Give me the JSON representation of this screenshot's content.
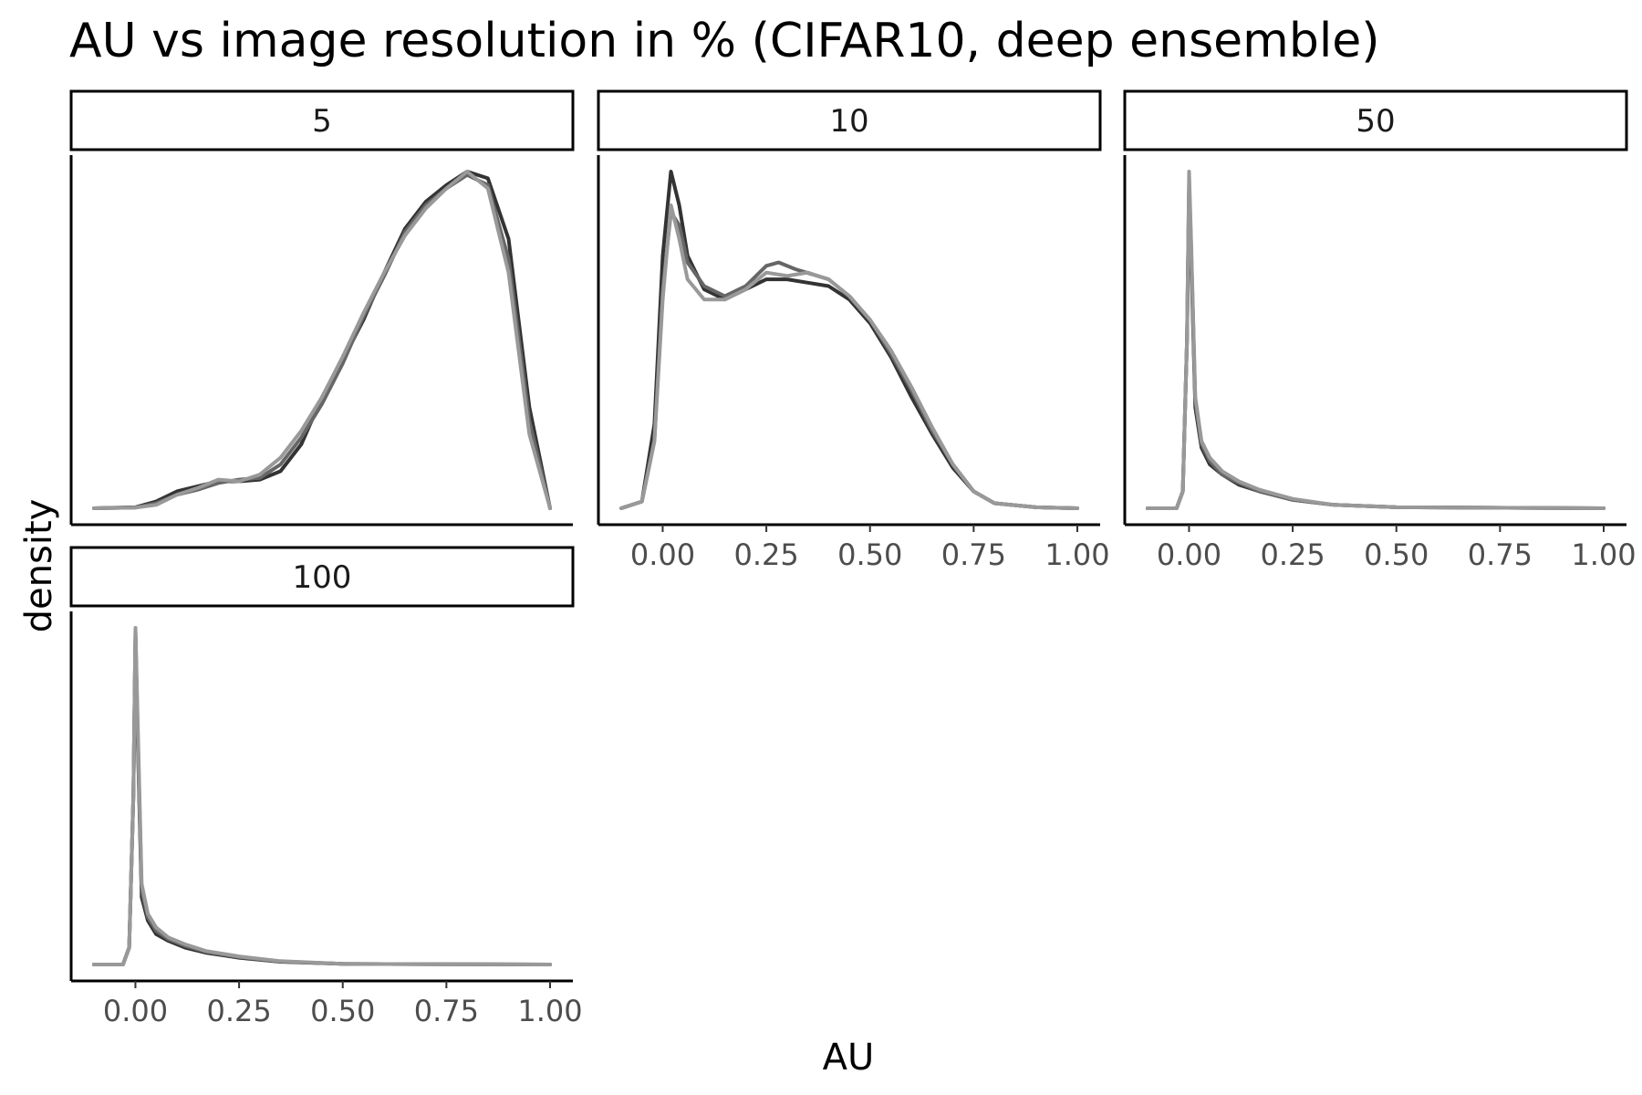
{
  "chart_data": {
    "type": "line",
    "title": "AU vs image resolution in % (CIFAR10, deep ensemble)",
    "xlabel": "AU",
    "ylabel": "density",
    "xlim": [
      -0.1,
      1.0
    ],
    "x_ticks": [
      0.0,
      0.25,
      0.5,
      0.75,
      1.0
    ],
    "x_tick_labels": [
      "0.00",
      "0.25",
      "0.50",
      "0.75",
      "1.00"
    ],
    "grid": false,
    "legend": "none",
    "series_colors": [
      "#333333",
      "#666666",
      "#999999"
    ],
    "panels": [
      {
        "label": "5",
        "series": [
          {
            "points": [
              [
                -0.1,
                0
              ],
              [
                0,
                0.003
              ],
              [
                0.05,
                0.02
              ],
              [
                0.1,
                0.05
              ],
              [
                0.15,
                0.065
              ],
              [
                0.2,
                0.08
              ],
              [
                0.25,
                0.08
              ],
              [
                0.3,
                0.085
              ],
              [
                0.35,
                0.11
              ],
              [
                0.4,
                0.19
              ],
              [
                0.45,
                0.33
              ],
              [
                0.5,
                0.44
              ],
              [
                0.55,
                0.56
              ],
              [
                0.6,
                0.7
              ],
              [
                0.65,
                0.83
              ],
              [
                0.7,
                0.91
              ],
              [
                0.75,
                0.96
              ],
              [
                0.8,
                1.0
              ],
              [
                0.85,
                0.98
              ],
              [
                0.9,
                0.8
              ],
              [
                0.95,
                0.3
              ],
              [
                1.0,
                0
              ]
            ]
          },
          {
            "points": [
              [
                -0.1,
                0
              ],
              [
                0,
                0.002
              ],
              [
                0.05,
                0.015
              ],
              [
                0.1,
                0.04
              ],
              [
                0.15,
                0.055
              ],
              [
                0.2,
                0.075
              ],
              [
                0.25,
                0.085
              ],
              [
                0.3,
                0.09
              ],
              [
                0.35,
                0.13
              ],
              [
                0.4,
                0.21
              ],
              [
                0.45,
                0.31
              ],
              [
                0.5,
                0.43
              ],
              [
                0.55,
                0.57
              ],
              [
                0.6,
                0.69
              ],
              [
                0.65,
                0.82
              ],
              [
                0.7,
                0.9
              ],
              [
                0.75,
                0.95
              ],
              [
                0.8,
                0.99
              ],
              [
                0.85,
                0.96
              ],
              [
                0.9,
                0.74
              ],
              [
                0.95,
                0.26
              ],
              [
                1.0,
                0
              ]
            ]
          },
          {
            "points": [
              [
                -0.1,
                0
              ],
              [
                0,
                0.002
              ],
              [
                0.05,
                0.01
              ],
              [
                0.1,
                0.04
              ],
              [
                0.15,
                0.06
              ],
              [
                0.2,
                0.085
              ],
              [
                0.25,
                0.08
              ],
              [
                0.3,
                0.1
              ],
              [
                0.35,
                0.15
              ],
              [
                0.4,
                0.23
              ],
              [
                0.45,
                0.33
              ],
              [
                0.5,
                0.45
              ],
              [
                0.55,
                0.58
              ],
              [
                0.6,
                0.7
              ],
              [
                0.65,
                0.81
              ],
              [
                0.7,
                0.89
              ],
              [
                0.75,
                0.95
              ],
              [
                0.8,
                1.0
              ],
              [
                0.85,
                0.95
              ],
              [
                0.9,
                0.7
              ],
              [
                0.95,
                0.22
              ],
              [
                1.0,
                0
              ]
            ]
          }
        ]
      },
      {
        "label": "10",
        "series": [
          {
            "points": [
              [
                -0.1,
                0
              ],
              [
                -0.05,
                0.02
              ],
              [
                -0.02,
                0.25
              ],
              [
                0,
                0.75
              ],
              [
                0.02,
                1.0
              ],
              [
                0.04,
                0.9
              ],
              [
                0.06,
                0.75
              ],
              [
                0.1,
                0.65
              ],
              [
                0.15,
                0.62
              ],
              [
                0.2,
                0.65
              ],
              [
                0.25,
                0.68
              ],
              [
                0.3,
                0.68
              ],
              [
                0.35,
                0.67
              ],
              [
                0.4,
                0.66
              ],
              [
                0.45,
                0.62
              ],
              [
                0.5,
                0.55
              ],
              [
                0.55,
                0.45
              ],
              [
                0.6,
                0.33
              ],
              [
                0.65,
                0.22
              ],
              [
                0.7,
                0.12
              ],
              [
                0.75,
                0.05
              ],
              [
                0.8,
                0.015
              ],
              [
                0.9,
                0.003
              ],
              [
                1.0,
                0
              ]
            ]
          },
          {
            "points": [
              [
                -0.1,
                0
              ],
              [
                -0.05,
                0.02
              ],
              [
                -0.02,
                0.2
              ],
              [
                0,
                0.65
              ],
              [
                0.02,
                0.88
              ],
              [
                0.04,
                0.84
              ],
              [
                0.06,
                0.73
              ],
              [
                0.1,
                0.66
              ],
              [
                0.15,
                0.63
              ],
              [
                0.2,
                0.66
              ],
              [
                0.25,
                0.72
              ],
              [
                0.28,
                0.73
              ],
              [
                0.32,
                0.71
              ],
              [
                0.4,
                0.68
              ],
              [
                0.45,
                0.63
              ],
              [
                0.5,
                0.56
              ],
              [
                0.55,
                0.46
              ],
              [
                0.6,
                0.35
              ],
              [
                0.65,
                0.23
              ],
              [
                0.7,
                0.13
              ],
              [
                0.75,
                0.05
              ],
              [
                0.8,
                0.015
              ],
              [
                0.9,
                0.003
              ],
              [
                1.0,
                0
              ]
            ]
          },
          {
            "points": [
              [
                -0.1,
                0
              ],
              [
                -0.05,
                0.02
              ],
              [
                -0.02,
                0.2
              ],
              [
                0,
                0.62
              ],
              [
                0.02,
                0.9
              ],
              [
                0.04,
                0.8
              ],
              [
                0.06,
                0.68
              ],
              [
                0.1,
                0.62
              ],
              [
                0.15,
                0.62
              ],
              [
                0.2,
                0.65
              ],
              [
                0.25,
                0.7
              ],
              [
                0.3,
                0.69
              ],
              [
                0.35,
                0.7
              ],
              [
                0.4,
                0.68
              ],
              [
                0.45,
                0.63
              ],
              [
                0.5,
                0.56
              ],
              [
                0.55,
                0.47
              ],
              [
                0.6,
                0.36
              ],
              [
                0.65,
                0.24
              ],
              [
                0.7,
                0.13
              ],
              [
                0.75,
                0.05
              ],
              [
                0.8,
                0.015
              ],
              [
                0.9,
                0.003
              ],
              [
                1.0,
                0
              ]
            ]
          }
        ]
      },
      {
        "label": "50",
        "series": [
          {
            "points": [
              [
                -0.1,
                0
              ],
              [
                -0.03,
                0
              ],
              [
                -0.015,
                0.05
              ],
              [
                -0.005,
                0.5
              ],
              [
                0,
                0.95
              ],
              [
                0.005,
                0.75
              ],
              [
                0.015,
                0.3
              ],
              [
                0.03,
                0.18
              ],
              [
                0.05,
                0.13
              ],
              [
                0.08,
                0.1
              ],
              [
                0.12,
                0.07
              ],
              [
                0.17,
                0.05
              ],
              [
                0.25,
                0.025
              ],
              [
                0.35,
                0.01
              ],
              [
                0.5,
                0.003
              ],
              [
                1.0,
                0
              ]
            ]
          },
          {
            "points": [
              [
                -0.1,
                0
              ],
              [
                -0.03,
                0
              ],
              [
                -0.015,
                0.05
              ],
              [
                -0.005,
                0.5
              ],
              [
                0,
                0.97
              ],
              [
                0.005,
                0.78
              ],
              [
                0.015,
                0.32
              ],
              [
                0.03,
                0.19
              ],
              [
                0.05,
                0.14
              ],
              [
                0.08,
                0.1
              ],
              [
                0.12,
                0.075
              ],
              [
                0.17,
                0.05
              ],
              [
                0.25,
                0.025
              ],
              [
                0.35,
                0.01
              ],
              [
                0.5,
                0.003
              ],
              [
                1.0,
                0
              ]
            ]
          },
          {
            "points": [
              [
                -0.1,
                0
              ],
              [
                -0.03,
                0
              ],
              [
                -0.015,
                0.05
              ],
              [
                -0.005,
                0.5
              ],
              [
                0,
                1.0
              ],
              [
                0.005,
                0.8
              ],
              [
                0.015,
                0.33
              ],
              [
                0.03,
                0.2
              ],
              [
                0.05,
                0.15
              ],
              [
                0.08,
                0.11
              ],
              [
                0.12,
                0.08
              ],
              [
                0.17,
                0.055
              ],
              [
                0.25,
                0.028
              ],
              [
                0.35,
                0.01
              ],
              [
                0.5,
                0.003
              ],
              [
                1.0,
                0
              ]
            ]
          }
        ]
      },
      {
        "label": "100",
        "series": [
          {
            "points": [
              [
                -0.1,
                0
              ],
              [
                -0.03,
                0
              ],
              [
                -0.015,
                0.05
              ],
              [
                -0.005,
                0.5
              ],
              [
                0,
                0.98
              ],
              [
                0.005,
                0.7
              ],
              [
                0.015,
                0.2
              ],
              [
                0.03,
                0.13
              ],
              [
                0.05,
                0.09
              ],
              [
                0.08,
                0.07
              ],
              [
                0.12,
                0.05
              ],
              [
                0.17,
                0.035
              ],
              [
                0.25,
                0.02
              ],
              [
                0.35,
                0.008
              ],
              [
                0.5,
                0.002
              ],
              [
                1.0,
                0
              ]
            ]
          },
          {
            "points": [
              [
                -0.1,
                0
              ],
              [
                -0.03,
                0
              ],
              [
                -0.015,
                0.05
              ],
              [
                -0.005,
                0.5
              ],
              [
                0,
                0.99
              ],
              [
                0.005,
                0.72
              ],
              [
                0.015,
                0.22
              ],
              [
                0.03,
                0.14
              ],
              [
                0.05,
                0.1
              ],
              [
                0.08,
                0.075
              ],
              [
                0.12,
                0.055
              ],
              [
                0.17,
                0.038
              ],
              [
                0.25,
                0.022
              ],
              [
                0.35,
                0.009
              ],
              [
                0.5,
                0.002
              ],
              [
                1.0,
                0
              ]
            ]
          },
          {
            "points": [
              [
                -0.1,
                0
              ],
              [
                -0.03,
                0
              ],
              [
                -0.015,
                0.05
              ],
              [
                -0.005,
                0.5
              ],
              [
                0,
                1.0
              ],
              [
                0.005,
                0.75
              ],
              [
                0.015,
                0.24
              ],
              [
                0.03,
                0.15
              ],
              [
                0.05,
                0.11
              ],
              [
                0.08,
                0.08
              ],
              [
                0.12,
                0.06
              ],
              [
                0.17,
                0.04
              ],
              [
                0.25,
                0.024
              ],
              [
                0.35,
                0.01
              ],
              [
                0.5,
                0.002
              ],
              [
                1.0,
                0
              ]
            ]
          }
        ]
      }
    ]
  }
}
